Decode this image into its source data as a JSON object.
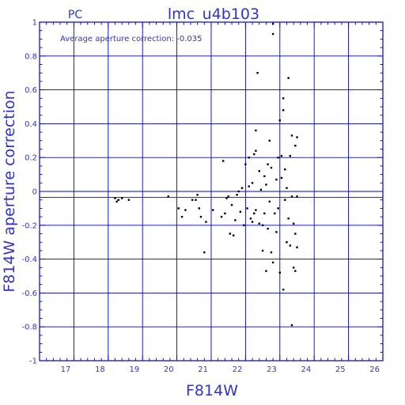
{
  "chart_data": {
    "type": "scatter",
    "corner_label": "PC",
    "title": "lmc_u4b103",
    "annotation": "Average aperture correction: -0.035",
    "xlabel": "F814W",
    "ylabel": "F814W aperture correction",
    "xlim": [
      16,
      26
    ],
    "ylim": [
      -1,
      1
    ],
    "x_ticks": [
      17,
      18,
      19,
      20,
      21,
      22,
      23,
      24,
      25,
      26
    ],
    "y_ticks": [
      -1,
      -0.8,
      -0.6,
      -0.4,
      -0.2,
      0,
      0.2,
      0.4,
      0.6,
      0.8,
      1
    ],
    "x_tick_labels": [
      "17",
      "18",
      "19",
      "20",
      "21",
      "22",
      "23",
      "24",
      "25",
      "26"
    ],
    "y_tick_labels": [
      "-1",
      "-0.8",
      "-0.6",
      "-0.4",
      "-0.2",
      "0",
      "0.2",
      "0.4",
      "0.6",
      "0.8",
      "1"
    ],
    "grid": true,
    "reference_lines": [
      {
        "name": "zero",
        "y": 0,
        "color": "#0000cc"
      },
      {
        "name": "average",
        "y": -0.035,
        "color": "#cc0000"
      }
    ],
    "colors": {
      "axes": "#0000cc",
      "grid": "#0000cc",
      "text": "#3333cc",
      "points": "#000000",
      "average_line": "#cc0000"
    },
    "points": [
      {
        "x": 18.2,
        "y": -0.04
      },
      {
        "x": 18.25,
        "y": -0.06
      },
      {
        "x": 18.3,
        "y": -0.05
      },
      {
        "x": 18.4,
        "y": -0.04
      },
      {
        "x": 18.6,
        "y": -0.05
      },
      {
        "x": 19.75,
        "y": -0.03
      },
      {
        "x": 20.05,
        "y": -0.1
      },
      {
        "x": 20.15,
        "y": -0.15
      },
      {
        "x": 20.25,
        "y": -0.11
      },
      {
        "x": 20.45,
        "y": -0.05
      },
      {
        "x": 20.55,
        "y": -0.05
      },
      {
        "x": 20.6,
        "y": -0.02
      },
      {
        "x": 20.65,
        "y": -0.1
      },
      {
        "x": 20.7,
        "y": -0.15
      },
      {
        "x": 20.8,
        "y": -0.36
      },
      {
        "x": 20.85,
        "y": -0.18
      },
      {
        "x": 21.05,
        "y": -0.11
      },
      {
        "x": 21.3,
        "y": -0.15
      },
      {
        "x": 21.35,
        "y": 0.18
      },
      {
        "x": 21.4,
        "y": -0.13
      },
      {
        "x": 21.45,
        "y": -0.04
      },
      {
        "x": 21.5,
        "y": -0.03
      },
      {
        "x": 21.55,
        "y": -0.25
      },
      {
        "x": 21.6,
        "y": -0.08
      },
      {
        "x": 21.65,
        "y": -0.26
      },
      {
        "x": 21.7,
        "y": -0.17
      },
      {
        "x": 21.75,
        "y": -0.02
      },
      {
        "x": 21.8,
        "y": 0.0
      },
      {
        "x": 21.85,
        "y": -0.12
      },
      {
        "x": 21.9,
        "y": 0.02
      },
      {
        "x": 21.95,
        "y": -0.2
      },
      {
        "x": 22.0,
        "y": 0.16
      },
      {
        "x": 22.05,
        "y": -0.1
      },
      {
        "x": 22.1,
        "y": 0.03
      },
      {
        "x": 22.1,
        "y": 0.2
      },
      {
        "x": 22.15,
        "y": -0.16
      },
      {
        "x": 22.2,
        "y": 0.05
      },
      {
        "x": 22.2,
        "y": -0.18
      },
      {
        "x": 22.25,
        "y": 0.22
      },
      {
        "x": 22.25,
        "y": -0.13
      },
      {
        "x": 22.3,
        "y": 0.36
      },
      {
        "x": 22.3,
        "y": 0.24
      },
      {
        "x": 22.3,
        "y": -0.11
      },
      {
        "x": 22.35,
        "y": 0.7
      },
      {
        "x": 22.4,
        "y": 0.12
      },
      {
        "x": 22.4,
        "y": -0.19
      },
      {
        "x": 22.45,
        "y": 0.01
      },
      {
        "x": 22.5,
        "y": -0.2
      },
      {
        "x": 22.5,
        "y": -0.35
      },
      {
        "x": 22.55,
        "y": 0.09
      },
      {
        "x": 22.55,
        "y": -0.13
      },
      {
        "x": 22.6,
        "y": 0.04
      },
      {
        "x": 22.6,
        "y": -0.47
      },
      {
        "x": 22.65,
        "y": 0.16
      },
      {
        "x": 22.65,
        "y": -0.22
      },
      {
        "x": 22.7,
        "y": 0.3
      },
      {
        "x": 22.7,
        "y": -0.06
      },
      {
        "x": 22.75,
        "y": 0.14
      },
      {
        "x": 22.75,
        "y": -0.36
      },
      {
        "x": 22.8,
        "y": 0.99
      },
      {
        "x": 22.8,
        "y": 0.93
      },
      {
        "x": 22.8,
        "y": -0.42
      },
      {
        "x": 22.85,
        "y": -0.13
      },
      {
        "x": 22.9,
        "y": 0.07
      },
      {
        "x": 22.9,
        "y": -0.24
      },
      {
        "x": 22.95,
        "y": 0.2
      },
      {
        "x": 22.95,
        "y": -0.1
      },
      {
        "x": 23.0,
        "y": 0.42
      },
      {
        "x": 23.0,
        "y": -0.48
      },
      {
        "x": 23.05,
        "y": 0.21
      },
      {
        "x": 23.05,
        "y": 0.08
      },
      {
        "x": 23.1,
        "y": 0.55
      },
      {
        "x": 23.1,
        "y": 0.48
      },
      {
        "x": 23.1,
        "y": -0.58
      },
      {
        "x": 23.15,
        "y": 0.13
      },
      {
        "x": 23.15,
        "y": -0.05
      },
      {
        "x": 23.2,
        "y": 0.02
      },
      {
        "x": 23.2,
        "y": -0.3
      },
      {
        "x": 23.25,
        "y": 0.67
      },
      {
        "x": 23.25,
        "y": -0.16
      },
      {
        "x": 23.3,
        "y": 0.21
      },
      {
        "x": 23.3,
        "y": -0.32
      },
      {
        "x": 23.35,
        "y": 0.33
      },
      {
        "x": 23.35,
        "y": -0.03
      },
      {
        "x": 23.35,
        "y": -0.79
      },
      {
        "x": 23.4,
        "y": -0.19
      },
      {
        "x": 23.4,
        "y": -0.45
      },
      {
        "x": 23.45,
        "y": 0.27
      },
      {
        "x": 23.45,
        "y": -0.25
      },
      {
        "x": 23.45,
        "y": -0.47
      },
      {
        "x": 23.5,
        "y": 0.32
      },
      {
        "x": 23.5,
        "y": -0.03
      },
      {
        "x": 23.5,
        "y": -0.33
      }
    ]
  }
}
